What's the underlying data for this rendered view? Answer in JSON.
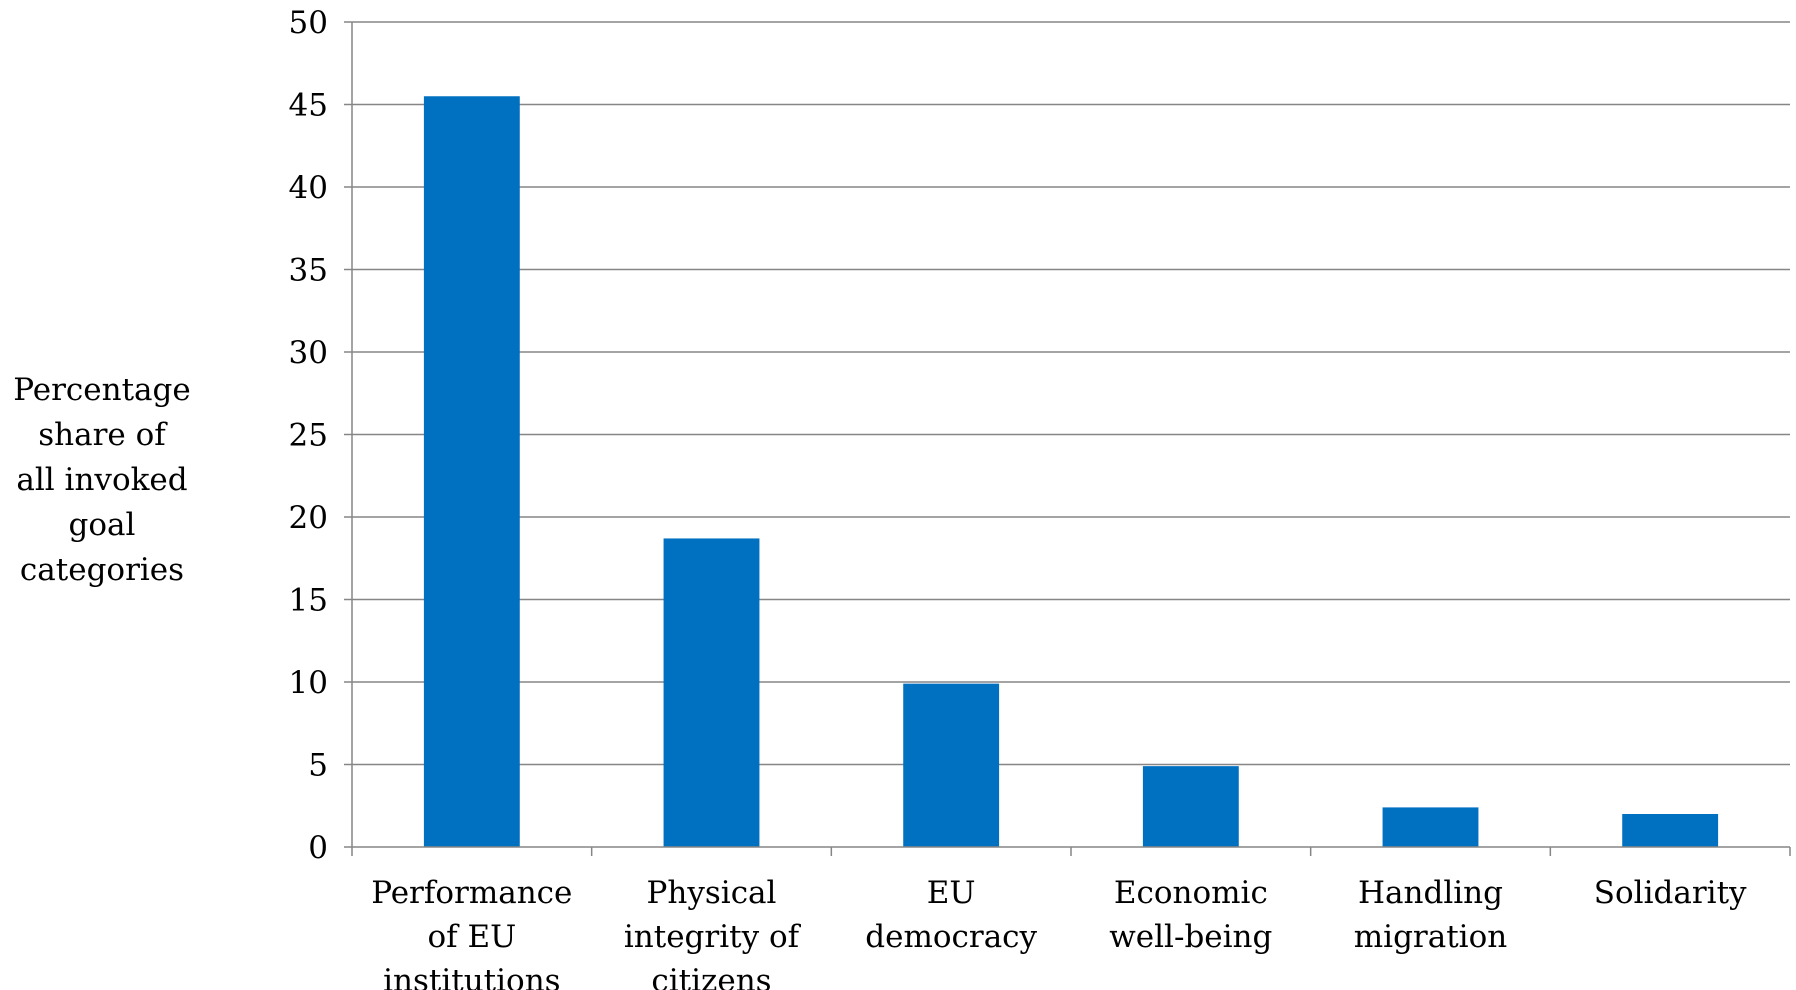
{
  "chart_data": {
    "type": "bar",
    "categories": [
      [
        "Performance",
        "of EU",
        "institutions"
      ],
      [
        "Physical",
        "integrity of",
        "citizens"
      ],
      [
        "EU",
        "democracy"
      ],
      [
        "Economic",
        "well-being"
      ],
      [
        "Handling",
        "migration"
      ],
      [
        "Solidarity"
      ]
    ],
    "values": [
      45.5,
      18.7,
      9.9,
      4.9,
      2.4,
      2.0
    ],
    "ylabel_lines": [
      "Percentage",
      "share of",
      "all invoked",
      "goal",
      "categories"
    ],
    "ylim": [
      0,
      50
    ],
    "yticks": [
      0,
      5,
      10,
      15,
      20,
      25,
      30,
      35,
      40,
      45,
      50
    ],
    "grid": true,
    "legend": "none",
    "bar_color": "#0070C0",
    "grid_color": "#868686"
  }
}
